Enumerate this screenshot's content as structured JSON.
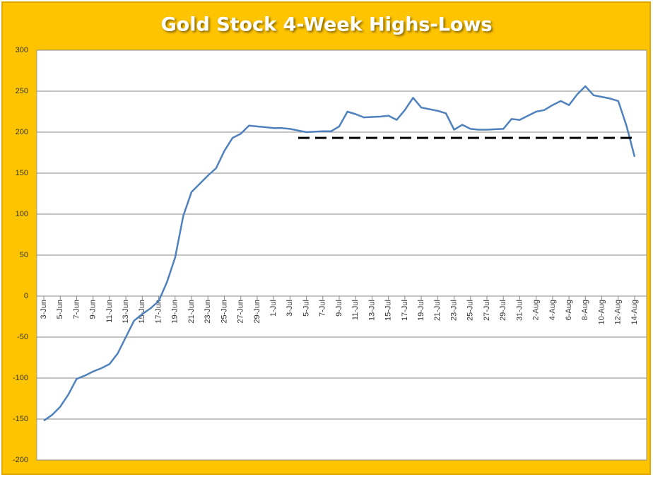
{
  "chart_data": {
    "type": "line",
    "title": "Gold Stock 4-Week Highs-Lows",
    "categories": [
      "3-Jun",
      null,
      "5-Jun",
      null,
      "7-Jun",
      null,
      "9-Jun",
      null,
      "11-Jun",
      null,
      "13-Jun",
      null,
      "15-Jun",
      null,
      "17-Jun",
      null,
      "19-Jun",
      null,
      "21-Jun",
      null,
      "23-Jun",
      null,
      "25-Jun",
      null,
      "27-Jun",
      null,
      "29-Jun",
      null,
      "1-Jul",
      null,
      "3-Jul",
      null,
      "5-Jul",
      null,
      "7-Jul",
      null,
      "9-Jul",
      null,
      "11-Jul",
      null,
      "13-Jul",
      null,
      "15-Jul",
      null,
      "17-Jul",
      null,
      "19-Jul",
      null,
      "21-Jul",
      null,
      "23-Jul",
      null,
      "25-Jul",
      null,
      "27-Jul",
      null,
      "29-Jul",
      null,
      "31-Jul",
      null,
      "2-Aug",
      null,
      "4-Aug",
      null,
      "6-Aug",
      null,
      "8-Aug",
      null,
      "10-Aug",
      null,
      "12-Aug",
      null,
      "14-Aug"
    ],
    "series": [
      {
        "color": "#4f81bd",
        "values": [
          -152,
          -145,
          -135,
          -120,
          -101,
          -97,
          -92,
          -88,
          -83,
          -70,
          -50,
          -30,
          -22,
          -15,
          -6,
          17,
          47,
          98,
          127,
          137,
          147,
          156,
          177,
          193,
          198,
          208,
          207,
          206,
          205,
          205,
          204,
          202,
          200,
          200.5,
          201,
          201,
          207,
          225,
          222,
          218,
          218.5,
          219,
          220,
          215,
          227,
          242,
          230,
          228,
          226,
          223,
          203,
          209,
          204,
          203,
          203,
          203.5,
          204,
          216,
          215,
          220,
          225,
          227,
          233,
          238,
          233,
          246,
          256,
          245,
          243,
          241,
          238,
          208,
          170
        ]
      },
      {
        "color": "#000000",
        "dashed": true,
        "values": [
          null,
          null,
          null,
          null,
          null,
          null,
          null,
          null,
          null,
          null,
          null,
          null,
          null,
          null,
          null,
          null,
          null,
          null,
          null,
          null,
          null,
          null,
          null,
          null,
          null,
          null,
          null,
          null,
          null,
          null,
          null,
          193,
          193,
          193,
          193,
          193,
          193,
          193,
          193,
          193,
          193,
          193,
          193,
          193,
          193,
          193,
          193,
          193,
          193,
          193,
          193,
          193,
          193,
          193,
          193,
          193,
          193,
          193,
          193,
          193,
          193,
          193,
          193,
          193,
          193,
          193,
          193,
          193,
          193,
          193,
          193,
          193,
          193
        ]
      }
    ],
    "ylim": [
      -200,
      300
    ],
    "yticks": [
      -200,
      -150,
      -100,
      -50,
      0,
      50,
      100,
      150,
      200,
      250,
      300
    ],
    "grid": true
  }
}
